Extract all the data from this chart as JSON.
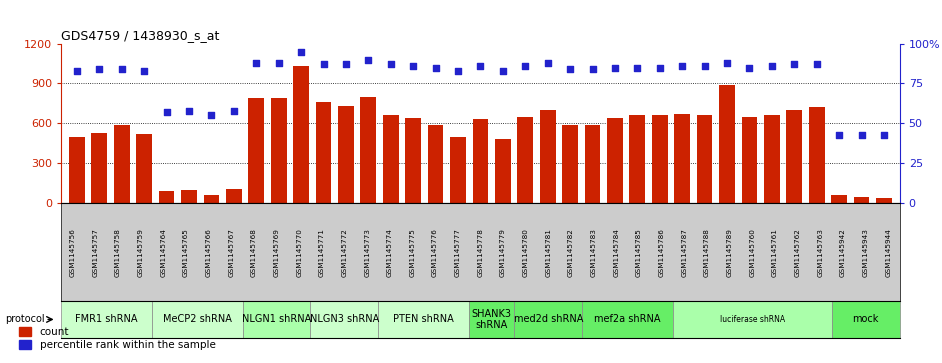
{
  "title": "GDS4759 / 1438930_s_at",
  "samples": [
    "GSM1145756",
    "GSM1145757",
    "GSM1145758",
    "GSM1145759",
    "GSM1145764",
    "GSM1145765",
    "GSM1145766",
    "GSM1145767",
    "GSM1145768",
    "GSM1145769",
    "GSM1145770",
    "GSM1145771",
    "GSM1145772",
    "GSM1145773",
    "GSM1145774",
    "GSM1145775",
    "GSM1145776",
    "GSM1145777",
    "GSM1145778",
    "GSM1145779",
    "GSM1145780",
    "GSM1145781",
    "GSM1145782",
    "GSM1145783",
    "GSM1145784",
    "GSM1145785",
    "GSM1145786",
    "GSM1145787",
    "GSM1145788",
    "GSM1145789",
    "GSM1145760",
    "GSM1145761",
    "GSM1145762",
    "GSM1145763",
    "GSM1145942",
    "GSM1145943",
    "GSM1145944"
  ],
  "counts": [
    500,
    530,
    590,
    520,
    90,
    100,
    60,
    110,
    790,
    790,
    1030,
    760,
    730,
    800,
    660,
    640,
    590,
    500,
    630,
    480,
    650,
    700,
    590,
    590,
    640,
    660,
    660,
    670,
    660,
    890,
    650,
    660,
    700,
    720,
    60,
    50,
    40
  ],
  "percentiles": [
    83,
    84,
    84,
    83,
    57,
    58,
    55,
    58,
    88,
    88,
    95,
    87,
    87,
    90,
    87,
    86,
    85,
    83,
    86,
    83,
    86,
    88,
    84,
    84,
    85,
    85,
    85,
    86,
    86,
    88,
    85,
    86,
    87,
    87,
    43,
    43,
    43
  ],
  "protocols": [
    {
      "label": "FMR1 shRNA",
      "start": 0,
      "end": 4,
      "color": "#ccffcc"
    },
    {
      "label": "MeCP2 shRNA",
      "start": 4,
      "end": 8,
      "color": "#ccffcc"
    },
    {
      "label": "NLGN1 shRNA",
      "start": 8,
      "end": 11,
      "color": "#aaffaa"
    },
    {
      "label": "NLGN3 shRNA",
      "start": 11,
      "end": 14,
      "color": "#ccffcc"
    },
    {
      "label": "PTEN shRNA",
      "start": 14,
      "end": 18,
      "color": "#ccffcc"
    },
    {
      "label": "SHANK3\nshRNA",
      "start": 18,
      "end": 20,
      "color": "#66ee66"
    },
    {
      "label": "med2d shRNA",
      "start": 20,
      "end": 23,
      "color": "#66ee66"
    },
    {
      "label": "mef2a shRNA",
      "start": 23,
      "end": 27,
      "color": "#66ee66"
    },
    {
      "label": "luciferase shRNA",
      "start": 27,
      "end": 34,
      "color": "#aaffaa"
    },
    {
      "label": "mock",
      "start": 34,
      "end": 37,
      "color": "#66ee66"
    }
  ],
  "bar_color": "#cc2200",
  "dot_color": "#2222cc",
  "ylim_left": [
    0,
    1200
  ],
  "ylim_right": [
    0,
    100
  ],
  "yticks_left": [
    0,
    300,
    600,
    900,
    1200
  ],
  "yticks_right": [
    0,
    25,
    50,
    75,
    100
  ],
  "yticklabels_right": [
    "0",
    "25",
    "50",
    "75",
    "100%"
  ],
  "bg_color": "#ffffff",
  "xticklabel_bg": "#cccccc",
  "proto_border_color": "#888888"
}
